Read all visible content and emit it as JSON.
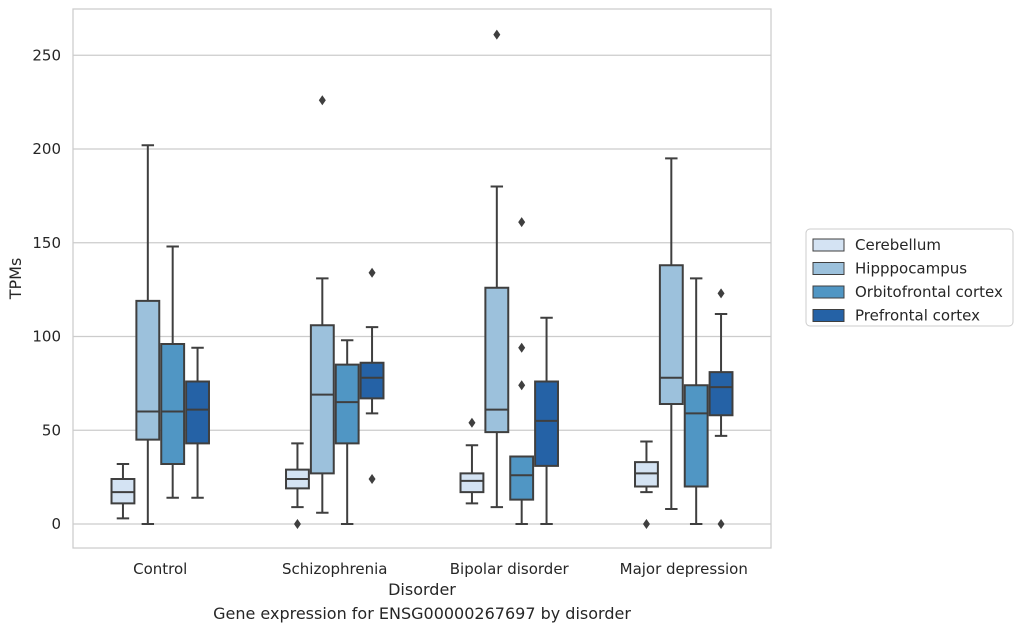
{
  "chart_data": {
    "type": "box",
    "xlabel": "Disorder",
    "ylabel": "TPMs",
    "caption": "Gene expression for ENSG00000267697 by disorder",
    "ylim": [
      -13,
      275
    ],
    "yticks": [
      0,
      50,
      100,
      150,
      200,
      250
    ],
    "grid": "horizontal",
    "legend_position": "right",
    "categories": [
      "Control",
      "Schizophrenia",
      "Bipolar disorder",
      "Major depression"
    ],
    "series": [
      {
        "name": "Cerebellum",
        "color": "#d4e3f3",
        "boxes": [
          {
            "whisker_low": 3,
            "q1": 11,
            "median": 17,
            "q3": 24,
            "whisker_high": 32,
            "outliers": []
          },
          {
            "whisker_low": 9,
            "q1": 19,
            "median": 24,
            "q3": 29,
            "whisker_high": 43,
            "outliers": [
              0
            ]
          },
          {
            "whisker_low": 11,
            "q1": 17,
            "median": 23,
            "q3": 27,
            "whisker_high": 42,
            "outliers": [
              54
            ]
          },
          {
            "whisker_low": 17,
            "q1": 20,
            "median": 27,
            "q3": 33,
            "whisker_high": 44,
            "outliers": [
              0
            ]
          }
        ]
      },
      {
        "name": "Hipppocampus",
        "color": "#9cc1dc",
        "boxes": [
          {
            "whisker_low": 0,
            "q1": 45,
            "median": 60,
            "q3": 119,
            "whisker_high": 202,
            "outliers": []
          },
          {
            "whisker_low": 6,
            "q1": 27,
            "median": 69,
            "q3": 106,
            "whisker_high": 131,
            "outliers": [
              226
            ]
          },
          {
            "whisker_low": 9,
            "q1": 49,
            "median": 61,
            "q3": 126,
            "whisker_high": 180,
            "outliers": [
              261
            ]
          },
          {
            "whisker_low": 8,
            "q1": 64,
            "median": 78,
            "q3": 138,
            "whisker_high": 195,
            "outliers": []
          }
        ]
      },
      {
        "name": "Orbitofrontal cortex",
        "color": "#5096c4",
        "boxes": [
          {
            "whisker_low": 14,
            "q1": 32,
            "median": 60,
            "q3": 96,
            "whisker_high": 148,
            "outliers": []
          },
          {
            "whisker_low": 0,
            "q1": 43,
            "median": 65,
            "q3": 85,
            "whisker_high": 98,
            "outliers": []
          },
          {
            "whisker_low": 0,
            "q1": 13,
            "median": 26,
            "q3": 36,
            "whisker_high": 36,
            "outliers": [
              74,
              94,
              161
            ]
          },
          {
            "whisker_low": 0,
            "q1": 20,
            "median": 59,
            "q3": 74,
            "whisker_high": 131,
            "outliers": []
          }
        ]
      },
      {
        "name": "Prefrontal cortex",
        "color": "#2562a6",
        "boxes": [
          {
            "whisker_low": 14,
            "q1": 43,
            "median": 61,
            "q3": 76,
            "whisker_high": 94,
            "outliers": []
          },
          {
            "whisker_low": 59,
            "q1": 67,
            "median": 78,
            "q3": 86,
            "whisker_high": 105,
            "outliers": [
              24,
              134
            ]
          },
          {
            "whisker_low": 0,
            "q1": 31,
            "median": 55,
            "q3": 76,
            "whisker_high": 110,
            "outliers": []
          },
          {
            "whisker_low": 47,
            "q1": 58,
            "median": 73,
            "q3": 81,
            "whisker_high": 112,
            "outliers": [
              0,
              123
            ]
          }
        ]
      }
    ]
  }
}
